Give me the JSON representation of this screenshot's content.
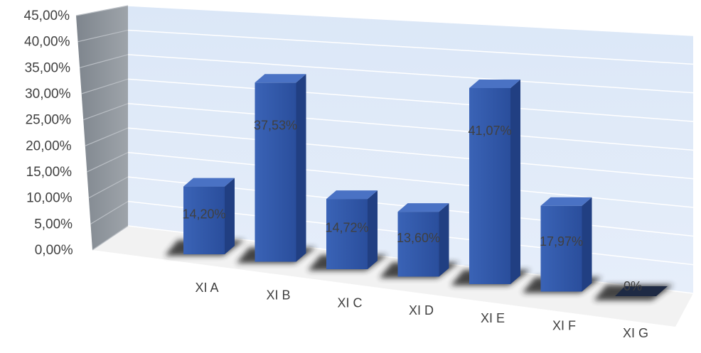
{
  "chart_data": {
    "type": "bar",
    "title": "",
    "xlabel": "",
    "ylabel": "",
    "categories": [
      "XI A",
      "XI B",
      "XI C",
      "XI D",
      "XI E",
      "XI F",
      "XI G"
    ],
    "values": [
      14.2,
      37.53,
      14.72,
      13.6,
      41.07,
      17.97,
      0
    ],
    "data_labels": [
      "14,20%",
      "37,53%",
      "14,72%",
      "13,60%",
      "41,07%",
      "17,97%",
      "0%"
    ],
    "y_tick_labels": [
      "0,00%",
      "5,00%",
      "10,00%",
      "15,00%",
      "20,00%",
      "25,00%",
      "30,00%",
      "35,00%",
      "40,00%",
      "45,00%"
    ],
    "ylim": [
      0,
      45
    ],
    "grid": true,
    "style": "3d-column",
    "colors": {
      "bar_front": "#2f55a4",
      "bar_side": "#213f82",
      "bar_top": "#4a72c4",
      "back_wall": "#dce8f7",
      "side_wall": "#8b9198",
      "gridline": "#ffffff",
      "shadow": "#262626"
    }
  }
}
